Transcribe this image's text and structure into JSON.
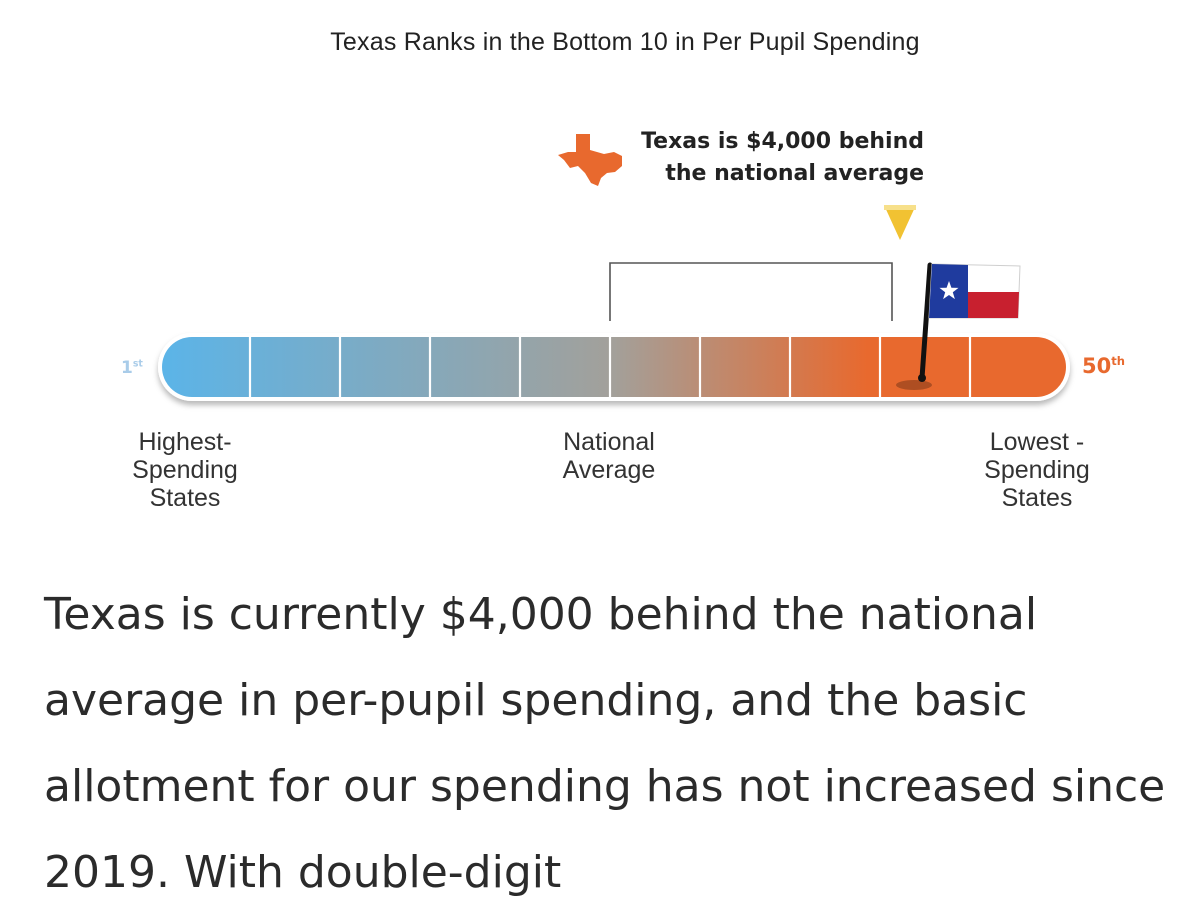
{
  "chart_data": {
    "type": "gauge",
    "title": "Texas Ranks in the Bottom 10 in Per Pupil Spending",
    "scale": {
      "start_label": "1",
      "start_suffix": "st",
      "end_label": "50",
      "end_suffix": "th",
      "min": 1,
      "max": 50
    },
    "segments": 10,
    "marker": {
      "state": "Texas",
      "rank_fraction": 0.82,
      "callout": [
        "Texas is $4,000 behind",
        "the national average"
      ]
    },
    "reference": {
      "label_lines": [
        "National",
        "Average"
      ],
      "fraction": 0.5
    },
    "end_labels": {
      "left": [
        "Highest-",
        "Spending",
        "States"
      ],
      "right": [
        "Lowest -",
        "Spending",
        "States"
      ]
    },
    "colors": {
      "gradient_start": "#5bb4e8",
      "gradient_mid": "#a3a09a",
      "gradient_end": "#e8692e",
      "accent": "#e8692e",
      "pointer": "#f1c232",
      "flag_blue": "#1f3b9e",
      "flag_red": "#c8202f"
    }
  },
  "article": {
    "text": "Texas is currently $4,000 behind the national average in per-pupil spending, and the basic allotment for our spending has not increased since 2019. With double-digit"
  }
}
